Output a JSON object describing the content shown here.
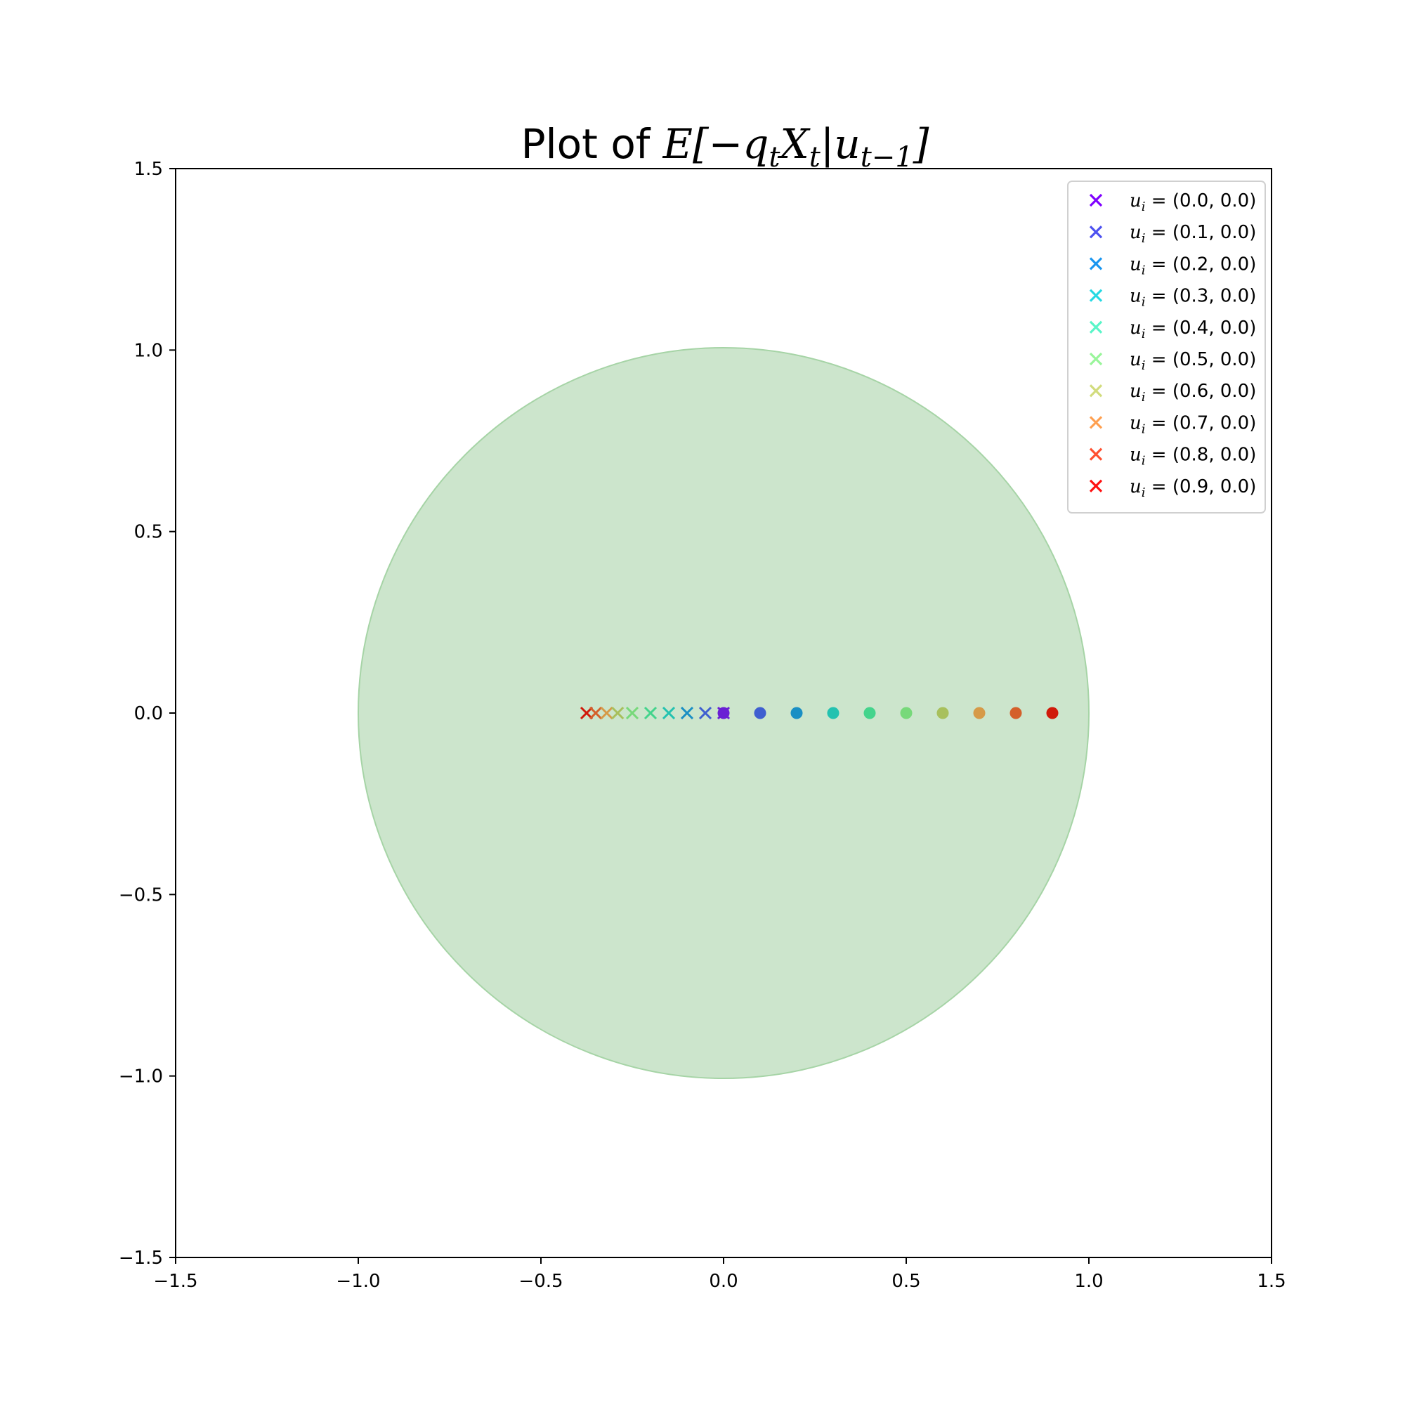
{
  "chart_data": {
    "type": "scatter",
    "title": {
      "prefix": "Plot of ",
      "expr": "E[−q",
      "sub1": "t",
      "mid": "X",
      "sub2": "t",
      "pipe": "|u",
      "sub3": "t−1",
      "close": "]"
    },
    "xlim": [
      -1.5,
      1.5
    ],
    "ylim": [
      -1.5,
      1.5
    ],
    "xticks": [
      -1.5,
      -1.0,
      -0.5,
      0.0,
      0.5,
      1.0,
      1.5
    ],
    "yticks": [
      -1.5,
      -1.0,
      -0.5,
      0.0,
      0.5,
      1.0,
      1.5
    ],
    "xtick_labels": [
      "−1.5",
      "−1.0",
      "−0.5",
      "0.0",
      "0.5",
      "1.0",
      "1.5"
    ],
    "ytick_labels": [
      "−1.5",
      "−1.0",
      "−0.5",
      "0.0",
      "0.5",
      "1.0",
      "1.5"
    ],
    "grid": false,
    "legend_position": "top-right",
    "unit_circle": {
      "center": [
        0,
        0
      ],
      "radius": 1.0,
      "fill": "#cce5cc",
      "stroke": "#a6d4a6"
    },
    "series": [
      {
        "name": "(0.0, 0.0)",
        "color": "#7f00ff",
        "dot_color": "#6a1fd4",
        "u": [
          0.0,
          0.0
        ],
        "expected": [
          0.0,
          0.0
        ]
      },
      {
        "name": "(0.1, 0.0)",
        "color": "#4c50f0",
        "dot_color": "#3f5fd0",
        "u": [
          0.1,
          0.0
        ],
        "expected": [
          -0.05,
          0.0
        ]
      },
      {
        "name": "(0.2, 0.0)",
        "color": "#1996f0",
        "dot_color": "#1a8fc4",
        "u": [
          0.2,
          0.0
        ],
        "expected": [
          -0.1,
          0.0
        ]
      },
      {
        "name": "(0.3, 0.0)",
        "color": "#26d9e3",
        "dot_color": "#23c2b0",
        "u": [
          0.3,
          0.0
        ],
        "expected": [
          -0.15,
          0.0
        ]
      },
      {
        "name": "(0.4, 0.0)",
        "color": "#59f5c8",
        "dot_color": "#44d48c",
        "u": [
          0.4,
          0.0
        ],
        "expected": [
          -0.2,
          0.0
        ]
      },
      {
        "name": "(0.5, 0.0)",
        "color": "#99f59a",
        "dot_color": "#77d97a",
        "u": [
          0.5,
          0.0
        ],
        "expected": [
          -0.25,
          0.0
        ]
      },
      {
        "name": "(0.6, 0.0)",
        "color": "#d2dc7d",
        "dot_color": "#a8c05c",
        "u": [
          0.6,
          0.0
        ],
        "expected": [
          -0.29,
          0.0
        ]
      },
      {
        "name": "(0.7, 0.0)",
        "color": "#ffa050",
        "dot_color": "#d69a48",
        "u": [
          0.7,
          0.0
        ],
        "expected": [
          -0.32,
          0.0
        ]
      },
      {
        "name": "(0.8, 0.0)",
        "color": "#ff5030",
        "dot_color": "#d4602a",
        "u": [
          0.8,
          0.0
        ],
        "expected": [
          -0.35,
          0.0
        ]
      },
      {
        "name": "(0.9, 0.0)",
        "color": "#ff1010",
        "dot_color": "#d01a0a",
        "u": [
          0.9,
          0.0
        ],
        "expected": [
          -0.375,
          0.0
        ]
      }
    ],
    "legend_prefix": "u",
    "legend_sub": "i",
    "legend_eq": " = "
  }
}
